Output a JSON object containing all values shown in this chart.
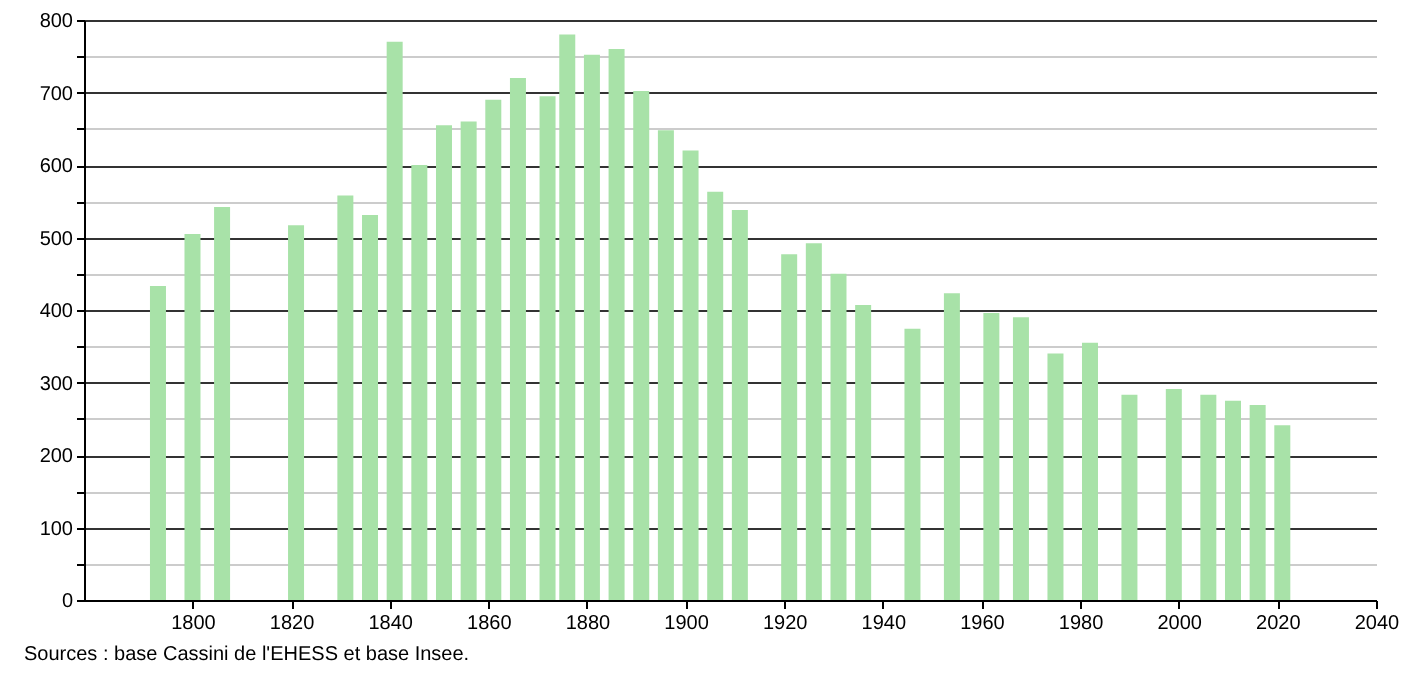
{
  "chart_data": {
    "type": "bar",
    "x": [
      1793,
      1800,
      1806,
      1821,
      1831,
      1836,
      1841,
      1846,
      1851,
      1856,
      1861,
      1866,
      1872,
      1876,
      1881,
      1886,
      1891,
      1896,
      1901,
      1906,
      1911,
      1921,
      1926,
      1931,
      1936,
      1946,
      1954,
      1962,
      1968,
      1975,
      1982,
      1990,
      1999,
      2006,
      2011,
      2016,
      2021
    ],
    "values": [
      433,
      505,
      542,
      517,
      558,
      531,
      770,
      600,
      655,
      660,
      690,
      720,
      695,
      780,
      752,
      760,
      702,
      648,
      620,
      563,
      538,
      477,
      492,
      450,
      407,
      374,
      423,
      396,
      390,
      340,
      355,
      283,
      291,
      283,
      275,
      269,
      241
    ],
    "color": "#a8e2a8",
    "xlim": [
      1778,
      2040
    ],
    "xticks": [
      1800,
      1820,
      1840,
      1860,
      1880,
      1900,
      1920,
      1940,
      1960,
      1980,
      2000,
      2020,
      2040
    ],
    "ylim": [
      0,
      800
    ],
    "yticks": [
      0,
      {
        "value": 50,
        "label": null
      },
      100,
      {
        "value": 150,
        "label": null
      },
      200,
      {
        "value": 250,
        "label": null
      },
      300,
      {
        "value": 350,
        "label": null
      },
      400,
      {
        "value": 450,
        "label": null
      },
      500,
      {
        "value": 550,
        "label": null
      },
      600,
      {
        "value": 650,
        "label": null
      },
      700,
      {
        "value": 750,
        "label": null
      },
      800
    ],
    "grid": "y",
    "annotations": [
      "Sources : base Cassini de l'EHESS et base Insee."
    ]
  }
}
